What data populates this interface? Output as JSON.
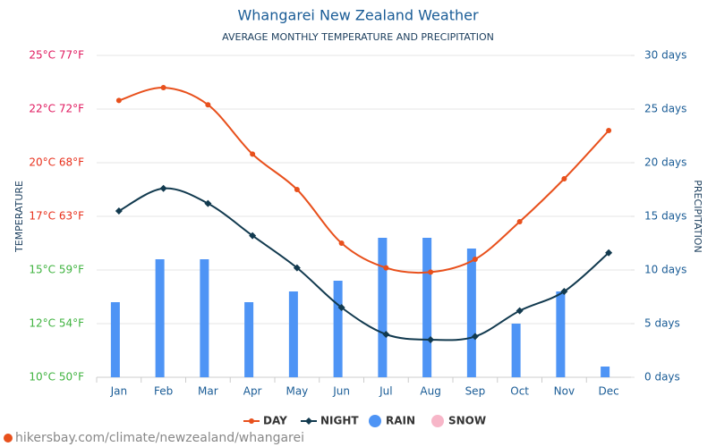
{
  "chart_data": {
    "type": "combo",
    "title": "Whangarei New Zealand Weather",
    "subtitle": "AVERAGE MONTHLY TEMPERATURE AND PRECIPITATION",
    "y_label": "TEMPERATURE",
    "y2_label": "PRECIPITATION",
    "source": "hikersbay.com/climate/newzealand/whangarei",
    "categories": [
      "Jan",
      "Feb",
      "Mar",
      "Apr",
      "May",
      "Jun",
      "Jul",
      "Aug",
      "Sep",
      "Oct",
      "Nov",
      "Dec"
    ],
    "series": [
      {
        "name": "DAY",
        "type": "line",
        "color": "#e8501c",
        "values": [
          22.9,
          23.5,
          22.7,
          20.4,
          18.75,
          16.25,
          15.1,
          14.9,
          15.5,
          17.25,
          19.25,
          21.5
        ]
      },
      {
        "name": "NIGHT",
        "type": "line",
        "color": "#123a4f",
        "values": [
          17.75,
          18.8,
          18.1,
          16.6,
          15.1,
          13.25,
          12.0,
          11.75,
          11.9,
          13.1,
          14.0,
          15.8
        ]
      },
      {
        "name": "RAIN",
        "type": "bar",
        "axis": "y2",
        "color": "#4e94f5",
        "values": [
          7,
          11,
          11,
          7,
          8,
          9,
          13,
          13,
          12,
          5,
          8,
          1
        ]
      },
      {
        "name": "SNOW",
        "type": "bar",
        "axis": "y2",
        "color": "#f7b6c8",
        "values": [
          0,
          0,
          0,
          0,
          0,
          0,
          0,
          0,
          0,
          0,
          0,
          0
        ]
      }
    ],
    "ylim": [
      10,
      25
    ],
    "yticks": [
      {
        "value": 25,
        "label": "25°C 77°F"
      },
      {
        "value": 22.5,
        "label": "22°C 72°F"
      },
      {
        "value": 20,
        "label": "20°C 68°F"
      },
      {
        "value": 17.5,
        "label": "17°C 63°F"
      },
      {
        "value": 15,
        "label": "15°C 59°F"
      },
      {
        "value": 12.5,
        "label": "12°C 54°F"
      },
      {
        "value": 10,
        "label": "10°C 50°F"
      }
    ],
    "ytick_colors": [
      "#e0195f",
      "#e0195f",
      "#e8301c",
      "#e8301c",
      "#3fb33f",
      "#3fb33f",
      "#3fb33f"
    ],
    "y2lim": [
      0,
      30
    ],
    "y2ticks": [
      {
        "value": 30,
        "label": "30 days"
      },
      {
        "value": 25,
        "label": "25 days"
      },
      {
        "value": 20,
        "label": "20 days"
      },
      {
        "value": 15,
        "label": "15 days"
      },
      {
        "value": 10,
        "label": "10 days"
      },
      {
        "value": 5,
        "label": "5 days"
      },
      {
        "value": 0,
        "label": "0 days"
      }
    ],
    "grid": true
  }
}
